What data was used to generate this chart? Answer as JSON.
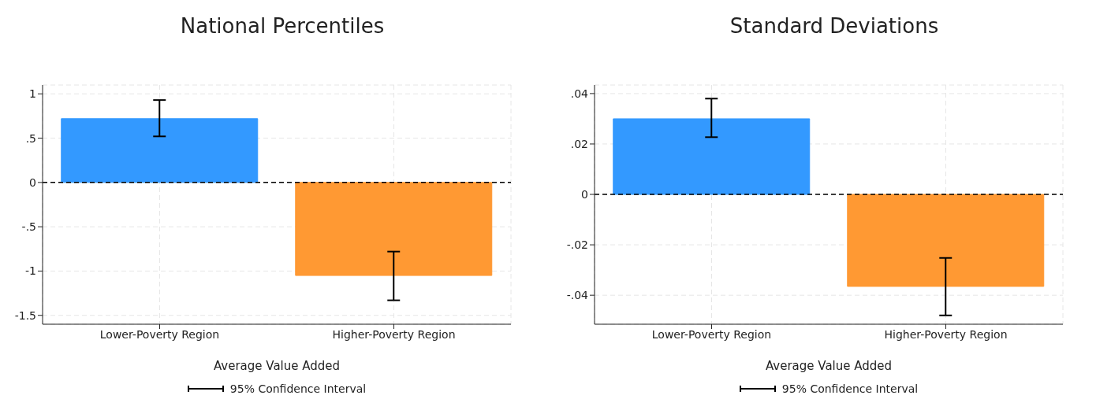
{
  "chart_data": [
    {
      "type": "bar",
      "title": "National Percentiles",
      "xlabel": "Average Value Added",
      "categories": [
        "Lower-Poverty Region",
        "Higher-Poverty Region"
      ],
      "values": [
        0.72,
        -1.05
      ],
      "colors": [
        "#3399ff",
        "#ff9933"
      ],
      "errors": [
        [
          0.52,
          0.93
        ],
        [
          -1.33,
          -0.78
        ]
      ],
      "ylim": [
        -1.6,
        1.1
      ],
      "yticks": [
        {
          "value": -1.5,
          "label": "-1.5"
        },
        -1,
        {
          "value": -0.5,
          "label": "-.5"
        },
        0,
        {
          "value": 0.5,
          "label": ".5"
        },
        1
      ],
      "grid": true,
      "ref_lines": [
        {
          "axis": "y",
          "value": 0,
          "color": "#000000",
          "line_style": "dashed"
        }
      ],
      "annotations": [
        "95% Confidence Interval"
      ]
    },
    {
      "type": "bar",
      "title": "Standard Deviations",
      "xlabel": "Average Value Added",
      "categories": [
        "Lower-Poverty Region",
        "Higher-Poverty Region"
      ],
      "values": [
        0.03,
        -0.0365
      ],
      "colors": [
        "#3399ff",
        "#ff9933"
      ],
      "errors": [
        [
          0.0227,
          0.038
        ],
        [
          -0.048,
          -0.0252
        ]
      ],
      "ylim": [
        -0.0515,
        0.0434
      ],
      "yticks": [
        {
          "value": -0.04,
          "label": "-.04"
        },
        {
          "value": -0.02,
          "label": "-.02"
        },
        0,
        {
          "value": 0.02,
          "label": ".02"
        },
        {
          "value": 0.04,
          "label": ".04"
        }
      ],
      "grid": true,
      "ref_lines": [
        {
          "axis": "y",
          "value": 0,
          "color": "#000000",
          "line_style": "dashed"
        }
      ],
      "annotations": [
        "95% Confidence Interval"
      ]
    }
  ]
}
